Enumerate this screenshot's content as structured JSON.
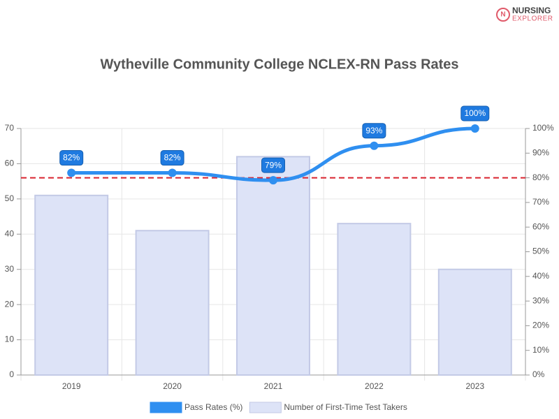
{
  "brand": [
    "NURSING",
    "EXPLORER"
  ],
  "chart_data": {
    "type": "bar",
    "title": "Wytheville Community College NCLEX-RN Pass Rates",
    "categories": [
      "2019",
      "2020",
      "2021",
      "2022",
      "2023"
    ],
    "series": [
      {
        "name": "Pass Rates (%)",
        "type": "line",
        "axis": "y2",
        "color": "#2f8ff0",
        "values": [
          82,
          82,
          79,
          93,
          100
        ],
        "value_labels": [
          "82%",
          "82%",
          "79%",
          "93%",
          "100%"
        ]
      },
      {
        "name": "Number of First-Time Test Takers",
        "type": "bar",
        "color": "#dde3f7",
        "border": "#c3cae6",
        "values": [
          51,
          41,
          62,
          43,
          30
        ]
      }
    ],
    "ylim": [
      0,
      70
    ],
    "yticks": [
      0,
      10,
      20,
      30,
      40,
      50,
      60,
      70
    ],
    "y2lim": [
      0,
      100
    ],
    "y2ticks": [
      {
        "value": 0,
        "label": "0%"
      },
      {
        "value": 10,
        "label": "10%"
      },
      {
        "value": 20,
        "label": "20%"
      },
      {
        "value": 30,
        "label": "30%"
      },
      {
        "value": 40,
        "label": "40%"
      },
      {
        "value": 50,
        "label": "50%"
      },
      {
        "value": 60,
        "label": "60%"
      },
      {
        "value": 70,
        "label": "70%"
      },
      {
        "value": 80,
        "label": "80%"
      },
      {
        "value": 90,
        "label": "90%"
      },
      {
        "value": 100,
        "label": "100%"
      }
    ],
    "reference_line": {
      "value": 80,
      "axis": "y2",
      "color": "#d9232e"
    },
    "grid": true,
    "legend": "bottom"
  }
}
